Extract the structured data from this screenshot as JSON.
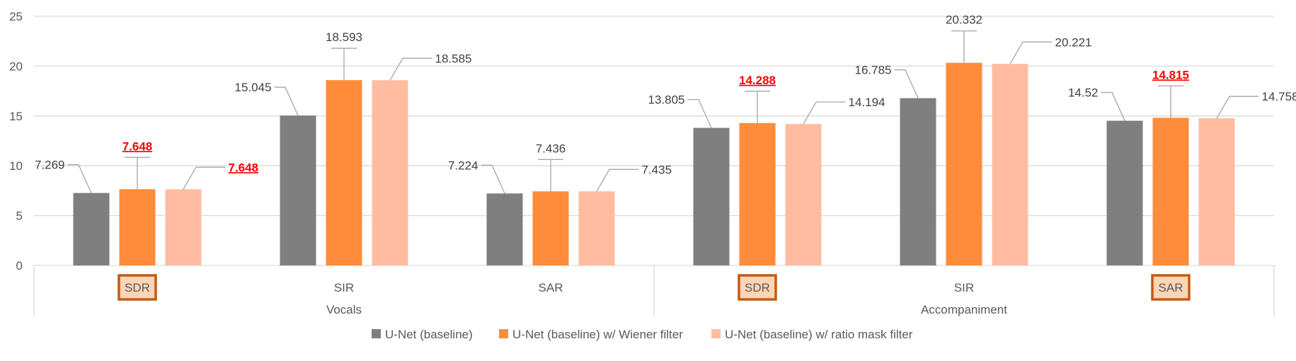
{
  "chart_data": {
    "type": "bar",
    "title": "",
    "xlabel": "",
    "ylabel": "",
    "ylim": [
      0,
      25
    ],
    "yticks": [
      0,
      5,
      10,
      15,
      20,
      25
    ],
    "grid": true,
    "legend_position": "bottom",
    "groups": [
      "Vocals",
      "Accompaniment"
    ],
    "categories": [
      "SDR",
      "SIR",
      "SAR",
      "SDR",
      "SIR",
      "SAR"
    ],
    "highlighted_categories": [
      true,
      false,
      false,
      true,
      false,
      true
    ],
    "series": [
      {
        "name": "U-Net (baseline)",
        "color": "#7f7f7f",
        "values": [
          7.269,
          15.045,
          7.224,
          13.805,
          16.785,
          14.52
        ],
        "labels": [
          "7.269",
          "15.045",
          "7.224",
          "13.805",
          "16.785",
          "14.52"
        ],
        "highlighted": [
          false,
          false,
          false,
          false,
          false,
          false
        ]
      },
      {
        "name": "U-Net (baseline) w/ Wiener filter",
        "color": "#ff8c3a",
        "values": [
          7.648,
          18.593,
          7.436,
          14.288,
          20.332,
          14.815
        ],
        "labels": [
          "7.648",
          "18.593",
          "7.436",
          "14.288",
          "20.332",
          "14.815"
        ],
        "highlighted": [
          true,
          false,
          false,
          true,
          false,
          true
        ]
      },
      {
        "name": "U-Net (baseline) w/ ratio mask filter",
        "color": "#ffbca1",
        "values": [
          7.648,
          18.585,
          7.435,
          14.194,
          20.221,
          14.758
        ],
        "labels": [
          "7.648",
          "18.585",
          "7.435",
          "14.194",
          "20.221",
          "14.758"
        ],
        "highlighted": [
          true,
          false,
          false,
          false,
          false,
          false
        ]
      }
    ],
    "colors": {
      "grid": "#d9d9d9",
      "axis_text": "#595959",
      "highlight_text": "#ff0000",
      "highlight_box_border": "#c55a11",
      "highlight_box_fill": "#fbd5b5"
    }
  }
}
